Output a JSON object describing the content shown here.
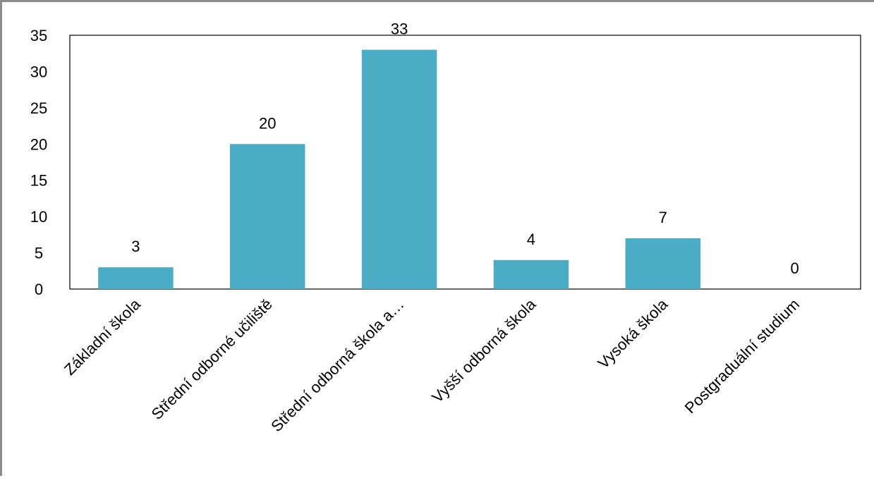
{
  "chart_data": {
    "type": "bar",
    "categories": [
      "Základní škola",
      "Střední odborné učiliště",
      "Střední odborná škola a…",
      "Vyšší odborná škola",
      "Vysoká škola",
      "Postgraduální studium"
    ],
    "values": [
      3,
      20,
      33,
      4,
      7,
      0
    ],
    "data_labels": [
      "3",
      "20",
      "33",
      "4",
      "7",
      "0"
    ],
    "yticks": [
      "0",
      "5",
      "10",
      "15",
      "20",
      "25",
      "30",
      "35"
    ],
    "ylim": [
      0,
      35
    ],
    "grid": false,
    "legend": "none",
    "bar_color": "#4bacc6"
  }
}
